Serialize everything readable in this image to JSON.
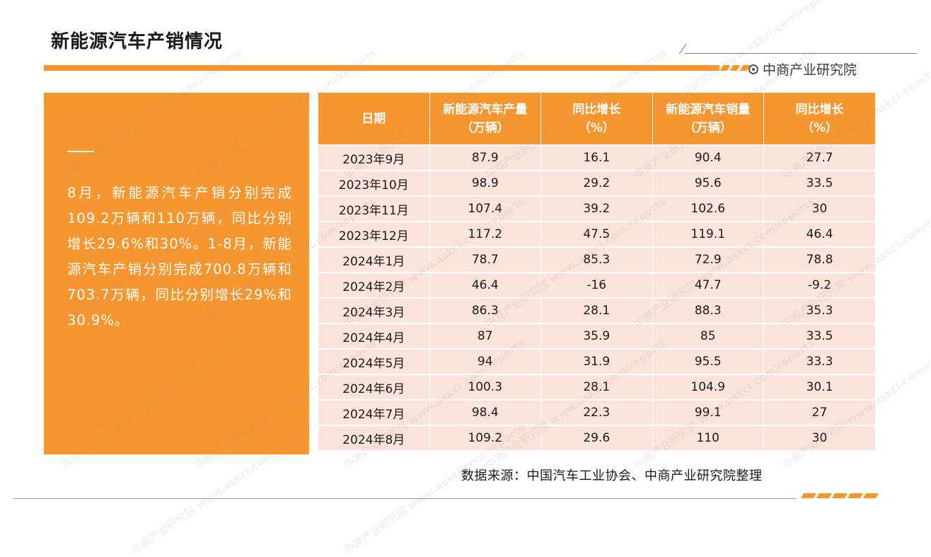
{
  "header": {
    "title": "新能源汽车产销情况",
    "brand": "中商产业研究院",
    "brand_icon": "target-circle-icon"
  },
  "colors": {
    "accent": "#f7952f",
    "row_bg": "#fce4dc",
    "text_white": "#ffffff"
  },
  "summary": {
    "text": "8月，新能源汽车产销分别完成109.2万辆和110万辆，同比分别增长29.6%和30%。1-8月，新能源汽车产销分别完成700.8万辆和703.7万辆，同比分别增长29%和30.9%。"
  },
  "table": {
    "headers": [
      {
        "line1": "日期",
        "line2": ""
      },
      {
        "line1": "新能源汽车产量",
        "line2": "（万辆）"
      },
      {
        "line1": "同比增长",
        "line2": "（%）"
      },
      {
        "line1": "新能源汽车销量",
        "line2": "（万辆）"
      },
      {
        "line1": "同比增长",
        "line2": "（%）"
      }
    ],
    "rows": [
      [
        "2023年9月",
        "87.9",
        "16.1",
        "90.4",
        "27.7"
      ],
      [
        "2023年10月",
        "98.9",
        "29.2",
        "95.6",
        "33.5"
      ],
      [
        "2023年11月",
        "107.4",
        "39.2",
        "102.6",
        "30"
      ],
      [
        "2023年12月",
        "117.2",
        "47.5",
        "119.1",
        "46.4"
      ],
      [
        "2024年1月",
        "78.7",
        "85.3",
        "72.9",
        "78.8"
      ],
      [
        "2024年2月",
        "46.4",
        "-16",
        "47.7",
        "-9.2"
      ],
      [
        "2024年3月",
        "86.3",
        "28.1",
        "88.3",
        "35.3"
      ],
      [
        "2024年4月",
        "87",
        "35.9",
        "85",
        "33.5"
      ],
      [
        "2024年5月",
        "94",
        "31.9",
        "95.5",
        "33.3"
      ],
      [
        "2024年6月",
        "100.3",
        "28.1",
        "104.9",
        "30.1"
      ],
      [
        "2024年7月",
        "98.4",
        "22.3",
        "99.1",
        "27"
      ],
      [
        "2024年8月",
        "109.2",
        "29.6",
        "110",
        "30"
      ]
    ]
  },
  "footer": {
    "source": "数据来源：中国汽车工业协会、中商产业研究院整理"
  },
  "watermark": {
    "text": "中商产业研究院 www.askci.com/reports"
  }
}
